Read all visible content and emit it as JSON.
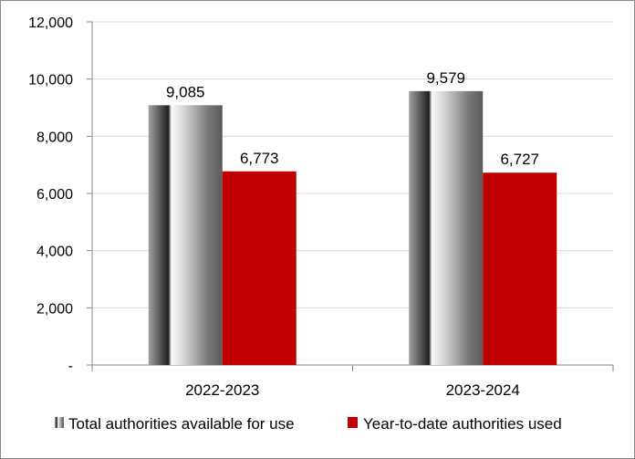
{
  "chart_data": {
    "type": "bar",
    "categories": [
      "2022-2023",
      "2023-2024"
    ],
    "series": [
      {
        "name": "Total authorities available for use",
        "values": [
          9085,
          9579
        ],
        "color": "gradient-gray"
      },
      {
        "name": "Year-to-date authorities used",
        "values": [
          6773,
          6727
        ],
        "color": "#C00000"
      }
    ],
    "data_labels": [
      [
        "9,085",
        "9,579"
      ],
      [
        "6,773",
        "6,727"
      ]
    ],
    "yticks": [
      "-",
      "2,000",
      "4,000",
      "6,000",
      "8,000",
      "10,000",
      "12,000"
    ],
    "ylim": [
      0,
      12000
    ],
    "grid": true,
    "legend": "bottom",
    "title": "",
    "xlabel": "",
    "ylabel": ""
  }
}
